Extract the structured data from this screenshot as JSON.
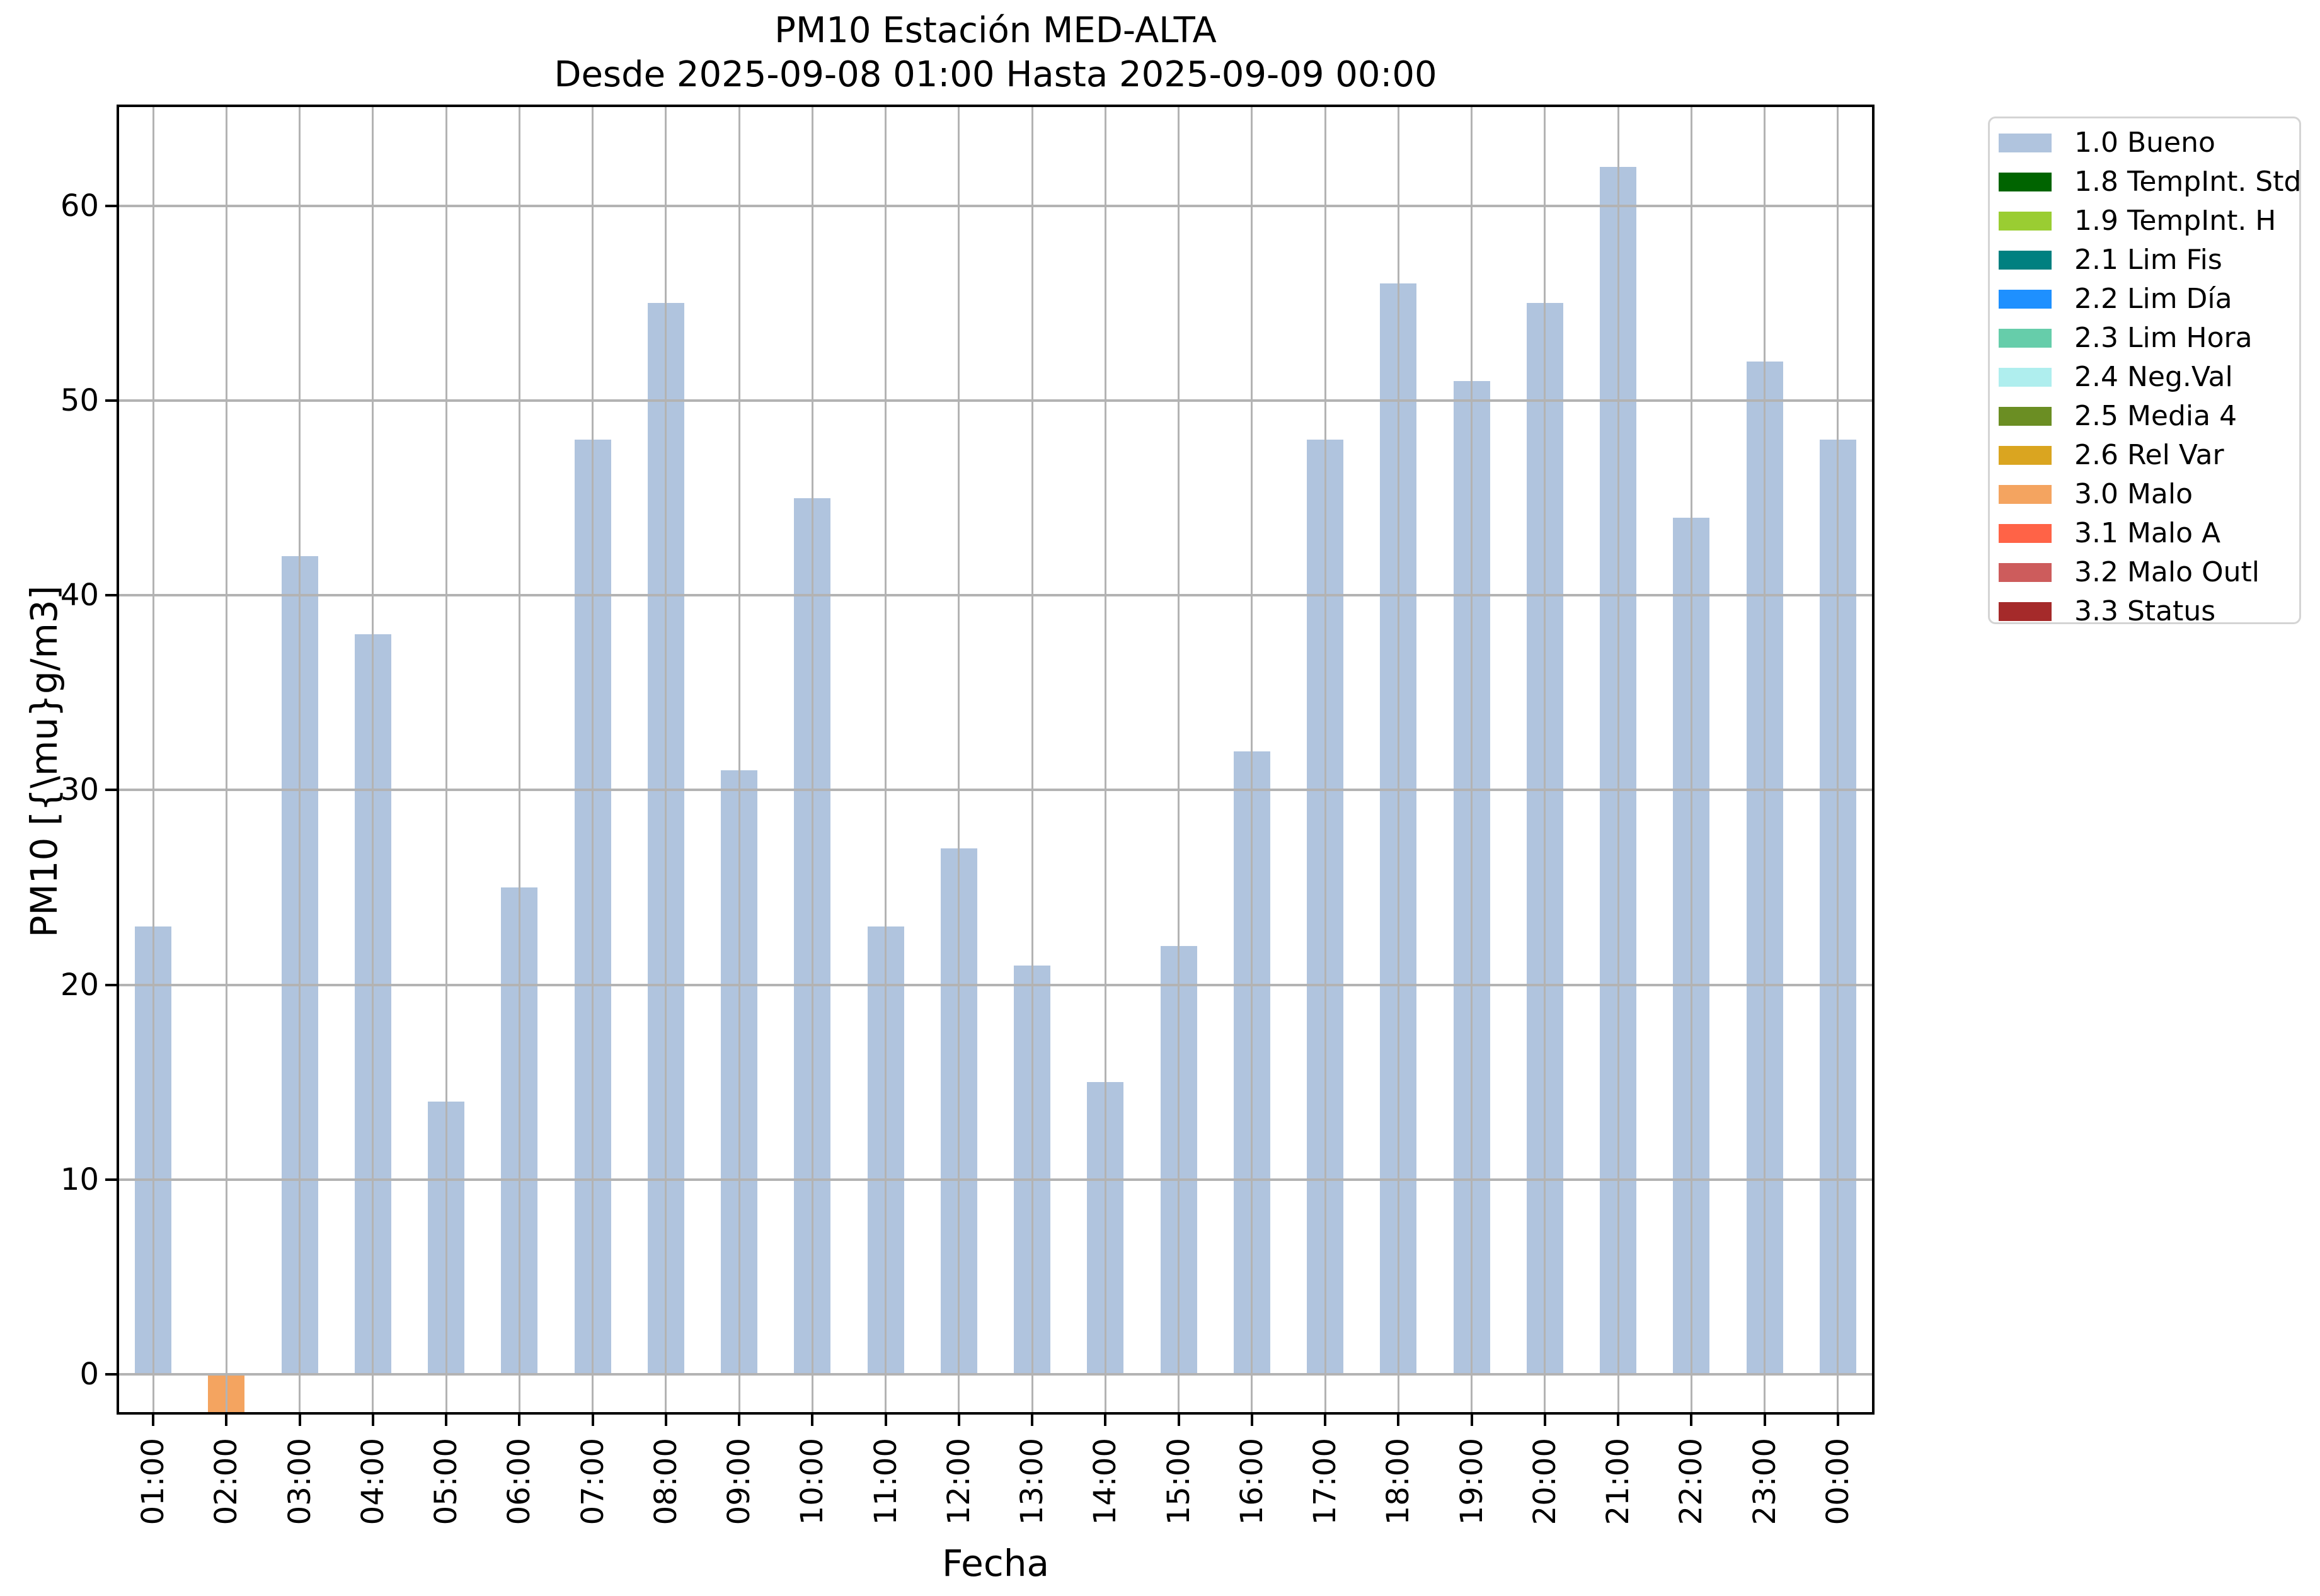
{
  "chart_data": {
    "type": "bar",
    "title": "PM10 Estación MED-ALTA",
    "subtitle": "Desde 2025-09-08 01:00 Hasta 2025-09-09 00:00",
    "xlabel": "Fecha",
    "ylabel": "PM10 [{\\mu}g/m3]",
    "categories": [
      "01:00",
      "02:00",
      "03:00",
      "04:00",
      "05:00",
      "06:00",
      "07:00",
      "08:00",
      "09:00",
      "10:00",
      "11:00",
      "12:00",
      "13:00",
      "14:00",
      "15:00",
      "16:00",
      "17:00",
      "18:00",
      "19:00",
      "20:00",
      "21:00",
      "22:00",
      "23:00",
      "00:00"
    ],
    "values": [
      23,
      -2,
      42,
      38,
      14,
      25,
      48,
      55,
      31,
      45,
      23,
      27,
      21,
      15,
      22,
      32,
      48,
      56,
      51,
      55,
      62,
      44,
      52,
      48
    ],
    "bar_flags": [
      "1.0 Bueno",
      "3.0 Malo",
      "1.0 Bueno",
      "1.0 Bueno",
      "1.0 Bueno",
      "1.0 Bueno",
      "1.0 Bueno",
      "1.0 Bueno",
      "1.0 Bueno",
      "1.0 Bueno",
      "1.0 Bueno",
      "1.0 Bueno",
      "1.0 Bueno",
      "1.0 Bueno",
      "1.0 Bueno",
      "1.0 Bueno",
      "1.0 Bueno",
      "1.0 Bueno",
      "1.0 Bueno",
      "1.0 Bueno",
      "1.0 Bueno",
      "1.0 Bueno",
      "1.0 Bueno",
      "1.0 Bueno"
    ],
    "yticks": [
      0,
      10,
      20,
      30,
      40,
      50,
      60
    ],
    "ylim": [
      -2.07,
      65.2
    ],
    "grid": true,
    "grid_color": "#b3b3b3",
    "legend": {
      "position": "outside-upper-right",
      "entries": [
        {
          "label": "1.0 Bueno",
          "color": "#B0C4DE"
        },
        {
          "label": "1.8 TempInt. Std",
          "color": "#006400"
        },
        {
          "label": "1.9 TempInt. H",
          "color": "#9ACD32"
        },
        {
          "label": "2.1 Lim Fis",
          "color": "#008080"
        },
        {
          "label": "2.2 Lim Día",
          "color": "#1E90FF"
        },
        {
          "label": "2.3 Lim Hora",
          "color": "#66CDAA"
        },
        {
          "label": "2.4 Neg.Val",
          "color": "#AFEEEE"
        },
        {
          "label": "2.5 Media 4",
          "color": "#6B8E23"
        },
        {
          "label": "2.6 Rel Var",
          "color": "#DAA520"
        },
        {
          "label": "3.0 Malo",
          "color": "#F4A460"
        },
        {
          "label": "3.1 Malo A",
          "color": "#FF6347"
        },
        {
          "label": "3.2 Malo Outl",
          "color": "#CD5C5C"
        },
        {
          "label": "3.3 Status",
          "color": "#A52A2A"
        }
      ]
    }
  }
}
